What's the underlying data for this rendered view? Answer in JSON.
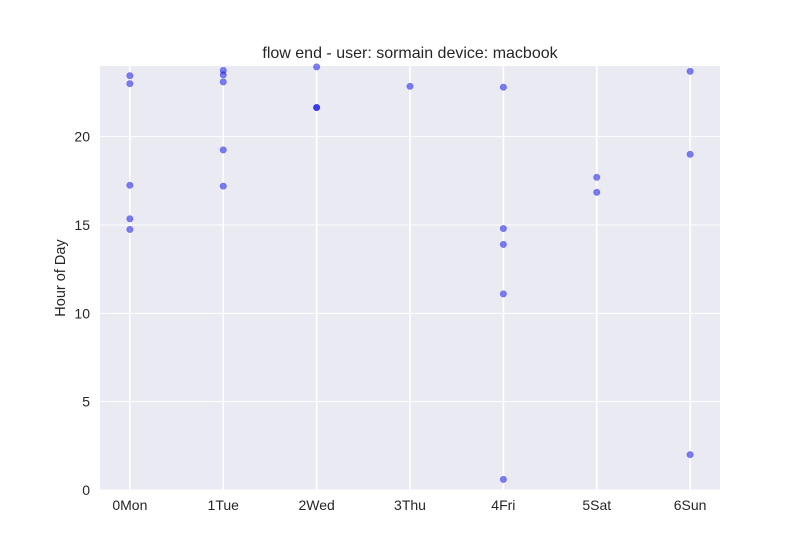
{
  "chart_data": {
    "type": "scatter",
    "title": "flow end - user: sormain device: macbook",
    "xlabel": "",
    "ylabel": "Hour of Day",
    "categories": [
      "0Mon",
      "1Tue",
      "2Wed",
      "3Thu",
      "4Fri",
      "5Sat",
      "6Sun"
    ],
    "xlim": [
      -0.32,
      6.32
    ],
    "ylim": [
      0,
      24
    ],
    "yticks": [
      0,
      5,
      10,
      15,
      20
    ],
    "grid": true,
    "colors": {
      "background": "#eaeaf2",
      "grid": "#ffffff",
      "point": "#0000e6"
    },
    "points": [
      {
        "x": 0,
        "y": 23.45
      },
      {
        "x": 0,
        "y": 23.0
      },
      {
        "x": 0,
        "y": 17.25
      },
      {
        "x": 0,
        "y": 15.35
      },
      {
        "x": 0,
        "y": 14.75
      },
      {
        "x": 1,
        "y": 23.75
      },
      {
        "x": 1,
        "y": 23.5
      },
      {
        "x": 1,
        "y": 23.1
      },
      {
        "x": 1,
        "y": 19.25
      },
      {
        "x": 1,
        "y": 17.2
      },
      {
        "x": 2,
        "y": 23.95
      },
      {
        "x": 2,
        "y": 21.65
      },
      {
        "x": 2,
        "y": 21.65
      },
      {
        "x": 3,
        "y": 22.85
      },
      {
        "x": 4,
        "y": 22.8
      },
      {
        "x": 4,
        "y": 14.8
      },
      {
        "x": 4,
        "y": 13.9
      },
      {
        "x": 4,
        "y": 11.1
      },
      {
        "x": 4,
        "y": 0.6
      },
      {
        "x": 5,
        "y": 17.7
      },
      {
        "x": 5,
        "y": 16.85
      },
      {
        "x": 6,
        "y": 23.7
      },
      {
        "x": 6,
        "y": 19.0
      },
      {
        "x": 6,
        "y": 2.0
      }
    ]
  }
}
